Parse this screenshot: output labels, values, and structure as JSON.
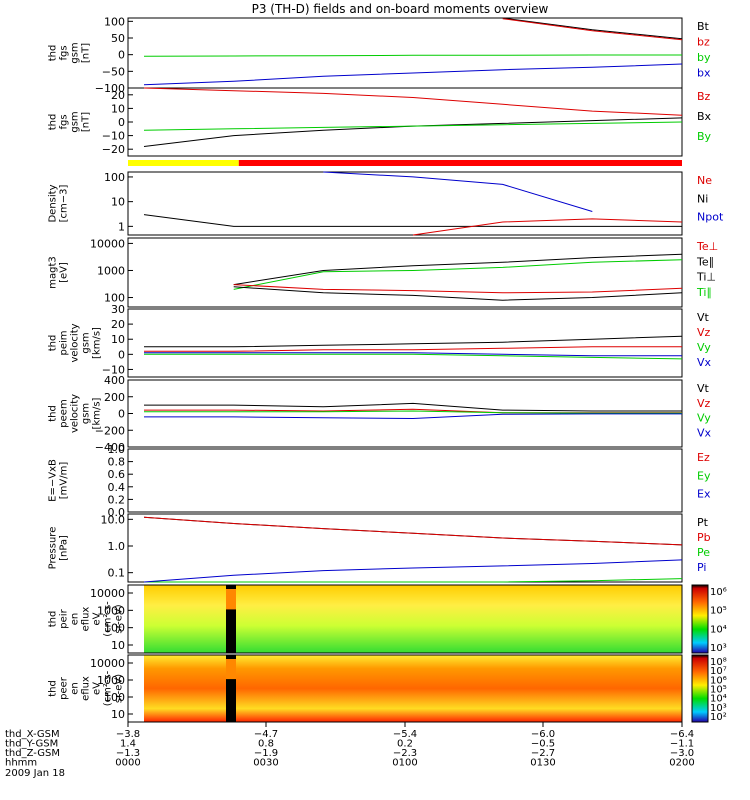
{
  "title": "P3 (TH-D) fields and on-board moments overview",
  "colors": {
    "black": "#000000",
    "red": "#dd0000",
    "green": "#00cc00",
    "blue": "#0000cc"
  },
  "chart_data": [
    {
      "type": "line",
      "ylabel": [
        "thd",
        "fgs",
        "gsm",
        "[nT]"
      ],
      "yticks": [
        "100",
        "50",
        "0",
        "−50",
        "−100"
      ],
      "ylim": [
        -100,
        110
      ],
      "legend": [
        {
          "label": "Bt",
          "color": "black"
        },
        {
          "label": "bz",
          "color": "red"
        },
        {
          "label": "by",
          "color": "green"
        },
        {
          "label": "bx",
          "color": "blue"
        }
      ],
      "x": [
        0,
        10,
        20,
        30,
        40,
        50,
        60
      ],
      "series": [
        {
          "name": "Bt",
          "values": [
            null,
            null,
            null,
            null,
            110,
            75,
            48
          ]
        },
        {
          "name": "bz",
          "values": [
            null,
            null,
            null,
            null,
            108,
            72,
            45
          ]
        },
        {
          "name": "by",
          "values": [
            -5,
            -4,
            -3,
            -2,
            -2,
            -1,
            -1
          ]
        },
        {
          "name": "bx",
          "values": [
            -90,
            -80,
            -65,
            -55,
            -45,
            -38,
            -28
          ]
        }
      ]
    },
    {
      "type": "line",
      "ylabel": [
        "thd",
        "fgs",
        "gsm",
        "[nT]"
      ],
      "yticks": [
        "20",
        "10",
        "0",
        "−10",
        "−20"
      ],
      "ylim": [
        -25,
        25
      ],
      "legend": [
        {
          "label": "Bz",
          "color": "red"
        },
        {
          "label": "Bx",
          "color": "black"
        },
        {
          "label": "By",
          "color": "green"
        }
      ],
      "x": [
        0,
        10,
        20,
        30,
        40,
        50,
        60
      ],
      "series": [
        {
          "name": "Bz",
          "values": [
            25,
            23,
            21,
            18,
            13,
            8,
            5
          ]
        },
        {
          "name": "Bx",
          "values": [
            -18,
            -10,
            -6,
            -3,
            -1,
            1,
            3
          ]
        },
        {
          "name": "By",
          "values": [
            -6,
            -5,
            -4,
            -3,
            -2,
            -1,
            0
          ]
        }
      ]
    },
    {
      "type": "line",
      "ylabel": [
        "Density",
        "[cm−3]"
      ],
      "yticks": [
        "100",
        "10",
        "1"
      ],
      "ylog": true,
      "legend": [
        {
          "label": "Ne",
          "color": "red"
        },
        {
          "label": "Ni",
          "color": "black"
        },
        {
          "label": "Npot",
          "color": "blue"
        }
      ],
      "x": [
        0,
        10,
        20,
        30,
        40,
        50,
        60
      ],
      "series": [
        {
          "name": "Ni",
          "values": [
            3,
            1,
            1,
            1,
            1,
            1,
            1
          ]
        },
        {
          "name": "Ne",
          "values": [
            null,
            null,
            null,
            0.4,
            1.5,
            2,
            1.5
          ]
        },
        {
          "name": "Npot",
          "values": [
            null,
            null,
            180,
            100,
            50,
            4,
            null
          ]
        }
      ]
    },
    {
      "type": "line",
      "ylabel": [
        "magt3",
        "[eV]"
      ],
      "yticks": [
        "10000",
        "1000",
        "100"
      ],
      "ylog": true,
      "legend": [
        {
          "label": "Te⊥",
          "color": "red"
        },
        {
          "label": "Te∥",
          "color": "black"
        },
        {
          "label": "Ti⊥",
          "color": "black"
        },
        {
          "label": "Ti∥",
          "color": "green"
        }
      ],
      "x": [
        0,
        10,
        20,
        30,
        40,
        50,
        60
      ],
      "series": [
        {
          "name": "Ti∥",
          "values": [
            null,
            200,
            900,
            1000,
            1300,
            2000,
            2500
          ]
        },
        {
          "name": "Ti⊥",
          "values": [
            null,
            300,
            1000,
            1500,
            2000,
            3000,
            4000
          ]
        },
        {
          "name": "Te⊥",
          "values": [
            null,
            300,
            200,
            180,
            150,
            160,
            220
          ]
        },
        {
          "name": "Te∥",
          "values": [
            null,
            250,
            150,
            120,
            80,
            100,
            150
          ]
        }
      ]
    },
    {
      "type": "line",
      "ylabel": [
        "thd",
        "peim",
        "velocity",
        "gsm",
        "[km/s]"
      ],
      "yticks": [
        "30",
        "20",
        "10",
        "0",
        "−10"
      ],
      "ylim": [
        -15,
        30
      ],
      "legend": [
        {
          "label": "Vt",
          "color": "black"
        },
        {
          "label": "Vz",
          "color": "red"
        },
        {
          "label": "Vy",
          "color": "green"
        },
        {
          "label": "Vx",
          "color": "blue"
        }
      ],
      "x": [
        0,
        10,
        20,
        30,
        40,
        50,
        60
      ],
      "series": [
        {
          "name": "Vt",
          "values": [
            5,
            5,
            6,
            7,
            8,
            10,
            12
          ]
        },
        {
          "name": "Vz",
          "values": [
            2,
            2,
            3,
            3,
            4,
            5,
            5
          ]
        },
        {
          "name": "Vy",
          "values": [
            0,
            0,
            0,
            0,
            -1,
            -2,
            -3
          ]
        },
        {
          "name": "Vx",
          "values": [
            1,
            1,
            1,
            1,
            0,
            -1,
            -1
          ]
        }
      ]
    },
    {
      "type": "line",
      "ylabel": [
        "thd",
        "peem",
        "velocity",
        "gsm",
        "[km/s]"
      ],
      "yticks": [
        "400",
        "200",
        "0",
        "−200",
        "−400"
      ],
      "ylim": [
        -400,
        400
      ],
      "legend": [
        {
          "label": "Vt",
          "color": "black"
        },
        {
          "label": "Vz",
          "color": "red"
        },
        {
          "label": "Vy",
          "color": "green"
        },
        {
          "label": "Vx",
          "color": "blue"
        }
      ],
      "x": [
        0,
        10,
        20,
        30,
        40,
        50,
        60
      ],
      "series": [
        {
          "name": "Vt",
          "values": [
            100,
            100,
            80,
            120,
            40,
            30,
            30
          ]
        },
        {
          "name": "Vz",
          "values": [
            40,
            40,
            30,
            50,
            10,
            10,
            10
          ]
        },
        {
          "name": "Vy",
          "values": [
            20,
            20,
            20,
            30,
            10,
            5,
            5
          ]
        },
        {
          "name": "Vx",
          "values": [
            -40,
            -40,
            -50,
            -60,
            -10,
            -5,
            -5
          ]
        }
      ]
    },
    {
      "type": "line",
      "ylabel": [
        "E=−VxB",
        "[mV/m]"
      ],
      "yticks": [
        "1.0",
        "0.8",
        "0.6",
        "0.4",
        "0.2",
        "0.0"
      ],
      "ylim": [
        0,
        1
      ],
      "legend": [
        {
          "label": "Ez",
          "color": "red"
        },
        {
          "label": "Ey",
          "color": "green"
        },
        {
          "label": "Ex",
          "color": "blue"
        }
      ],
      "series": []
    },
    {
      "type": "line",
      "ylabel": [
        "Pressure",
        "[nPa]"
      ],
      "yticks": [
        "10.0",
        "1.0",
        "0.1"
      ],
      "ylog": true,
      "legend": [
        {
          "label": "Pt",
          "color": "black"
        },
        {
          "label": "Pb",
          "color": "red"
        },
        {
          "label": "Pe",
          "color": "green"
        },
        {
          "label": "Pi",
          "color": "blue"
        }
      ],
      "x": [
        0,
        10,
        20,
        30,
        40,
        50,
        60
      ],
      "series": [
        {
          "name": "Pt",
          "values": [
            12,
            7,
            4.5,
            3,
            2,
            1.5,
            1.1
          ]
        },
        {
          "name": "Pb",
          "values": [
            12,
            7,
            4.5,
            3,
            2,
            1.5,
            1.1
          ]
        },
        {
          "name": "Pe",
          "values": [
            0.03,
            0.03,
            0.03,
            0.035,
            0.04,
            0.05,
            0.06
          ]
        },
        {
          "name": "Pi",
          "values": [
            0.04,
            0.08,
            0.12,
            0.15,
            0.18,
            0.22,
            0.3
          ]
        }
      ]
    },
    {
      "type": "heatmap",
      "ylabel": [
        "thd",
        "peir",
        "en",
        "eflux",
        "eV",
        "(cm²-s-",
        "sr-eV)"
      ],
      "yticks": [
        "10000",
        "1000",
        "100",
        "10"
      ],
      "colorbar_ticks": [
        "10⁶",
        "10⁵",
        "10⁴",
        "10³"
      ]
    },
    {
      "type": "heatmap",
      "ylabel": [
        "thd",
        "peer",
        "en",
        "eflux",
        "eV",
        "(cm²-s-",
        "sr-eV)"
      ],
      "yticks": [
        "10000",
        "1000",
        "100",
        "10"
      ],
      "colorbar_ticks": [
        "10⁸",
        "10⁷",
        "10⁶",
        "10⁵",
        "10⁴",
        "10³",
        "10²"
      ]
    }
  ],
  "mode_bar": {
    "segments": [
      {
        "color": "yellow",
        "from": 0,
        "to": 0.2
      },
      {
        "color": "red",
        "from": 0.2,
        "to": 1
      }
    ]
  },
  "xaxis": {
    "rows": [
      {
        "label": "thd_X-GSM",
        "values": [
          "−3.8",
          "−4.7",
          "−5.4",
          "−6.0",
          "−6.4"
        ]
      },
      {
        "label": "thd_Y-GSM",
        "values": [
          "1.4",
          "0.8",
          "0.2",
          "−0.5",
          "−1.1"
        ]
      },
      {
        "label": "thd_Z-GSM",
        "values": [
          "−1.3",
          "−1.9",
          "−2.3",
          "−2.7",
          "−3.0"
        ]
      },
      {
        "label": "hhmm",
        "values": [
          "0000",
          "0030",
          "0100",
          "0130",
          "0200"
        ]
      }
    ],
    "date": "2009 Jan 18"
  }
}
